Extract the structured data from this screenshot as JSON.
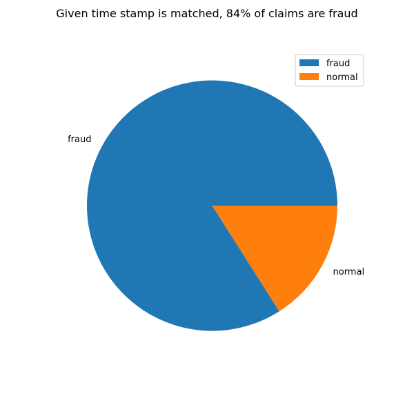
{
  "chart_data": {
    "type": "pie",
    "title": "Given time stamp is matched, 84% of claims are fraud",
    "categories": [
      "fraud",
      "normal"
    ],
    "values": [
      84,
      16
    ],
    "colors": [
      "#1f77b4",
      "#ff7f0e"
    ],
    "slice_labels": [
      "fraud",
      "normal"
    ],
    "legend": {
      "placement": "top-right",
      "entries": [
        "fraud",
        "normal"
      ]
    }
  }
}
